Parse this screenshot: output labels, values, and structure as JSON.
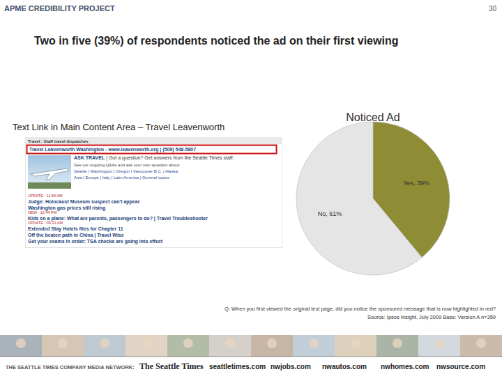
{
  "header": {
    "project": "APME CREDIBILITY PROJECT",
    "page_number": 30,
    "title": "Two in five (39%) of respondents noticed the ad on their first viewing"
  },
  "screenshot": {
    "caption": "Text Link in Main Content Area – Travel Leavenworth",
    "section_bar": "Travel : Staff travel dispatches",
    "ad_link": "Travel Leavenworth Washington - www.leavenworth.org | (509) 548-5807",
    "ask": {
      "heading": "ASK TRAVEL",
      "text": " | Got a question? Get answers from the Seattle Times staff.",
      "intro": "See our ongoing Q&As and ask your own question about:",
      "links": [
        "Seattle | Washington | Oregon | Vancouver B.C. | Alaska",
        "Asia | Europe | Italy | Latin America | General topics"
      ]
    },
    "news": [
      {
        "time": "UPDATE - 11:54 AM",
        "headlines": [
          "Judge: Holocaust Museum suspect can't appear",
          "Washington gas prices still rising"
        ]
      },
      {
        "time": "NEW - 12:44 PM",
        "headlines": [
          "Kids on a plane: What are parents, passengers to do? | Travel Troubleshooter"
        ]
      },
      {
        "time": "UPDATE - 09:22 AM",
        "headlines": [
          "Extended Stay Hotels files for Chapter 11",
          "Off the beaten path in China | Travel Wise",
          "Get your exams in order: TSA checks are going into effect"
        ]
      }
    ]
  },
  "chart_data": {
    "type": "pie",
    "title": "Noticed Ad",
    "categories": [
      "Yes",
      "No"
    ],
    "values": [
      39,
      61
    ],
    "value_labels": [
      "Yes, 39%",
      "No, 61%"
    ],
    "data_labels": true,
    "colors": [
      "#8e8d35",
      "#e5e5e5"
    ]
  },
  "notes": {
    "question": "Q: When you first viewed the original test page, did you notice the sponsored message that is now highlighted in red?",
    "source": "Source: Ipsos Insight, July 2009 Base: Version A n=359"
  },
  "footer": {
    "network": "THE SEATTLE TIMES COMPANY MEDIA NETWORK:",
    "brands": [
      "The Seattle Times",
      "seattletimes.com",
      "nwjobs.com",
      "nwautos.com",
      "nwhomes.com",
      "nwsource.com"
    ]
  }
}
